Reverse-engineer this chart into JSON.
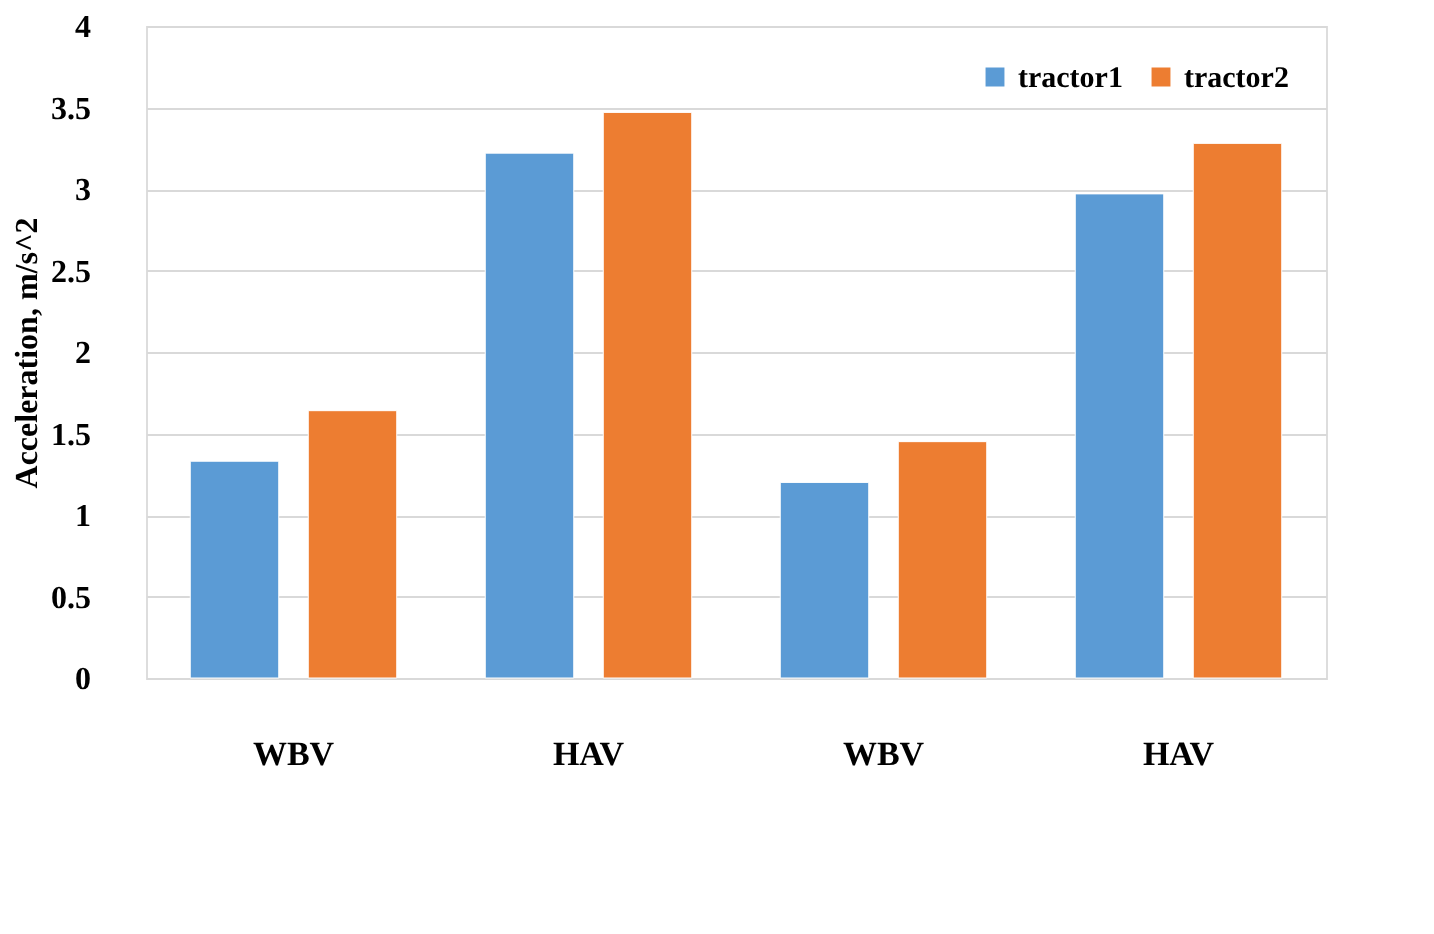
{
  "chart_data": {
    "type": "bar",
    "ylabel": "Acceleration, m/s^2",
    "categories": [
      "WBV",
      "HAV",
      "WBV",
      "HAV"
    ],
    "series": [
      {
        "name": "tractor1",
        "color": "#5b9bd5",
        "values": [
          1.33,
          3.22,
          1.2,
          2.97
        ]
      },
      {
        "name": "tractor2",
        "color": "#ed7d31",
        "values": [
          1.64,
          3.47,
          1.45,
          3.28
        ]
      }
    ],
    "ylim": [
      0,
      4
    ],
    "yticks": [
      0,
      0.5,
      1,
      1.5,
      2,
      2.5,
      3,
      3.5,
      4
    ],
    "grid": "y",
    "legend": "top right"
  }
}
